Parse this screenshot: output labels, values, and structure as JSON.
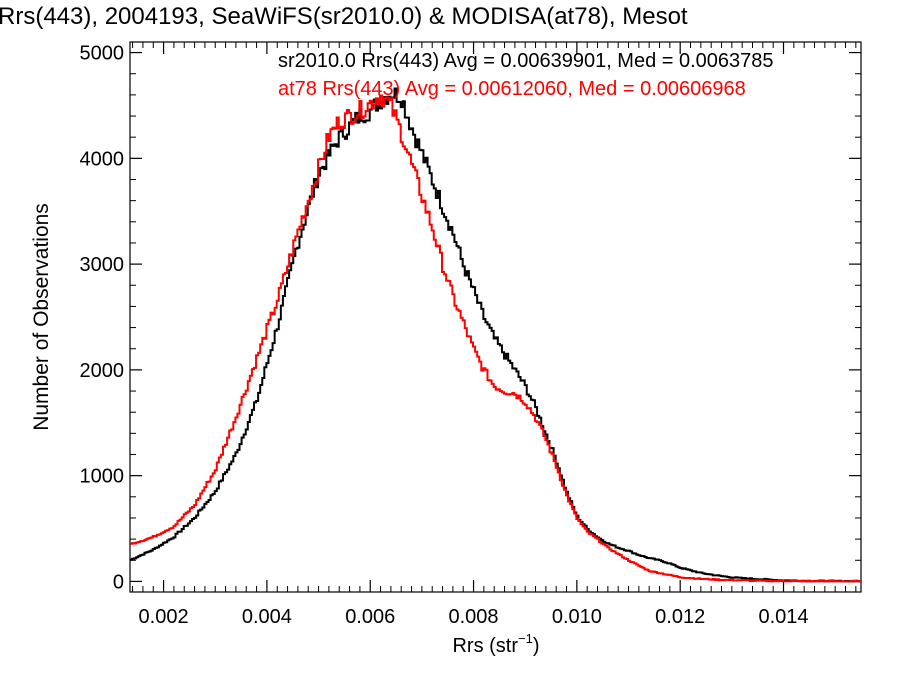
{
  "chart_data": {
    "type": "line",
    "title": "Rrs(443), 2004193, SeaWiFS(sr2010.0) & MODISA(at78), Mesot",
    "xlabel": "Rrs (str",
    "xlabel_sup": "−1",
    "xlabel_close": ")",
    "ylabel": "Number of Observations",
    "xlim": [
      0.00135,
      0.0155
    ],
    "ylim": [
      -100,
      5100
    ],
    "xticks": [
      0.002,
      0.004,
      0.006,
      0.008,
      0.01,
      0.012,
      0.014
    ],
    "xtick_labels": [
      "0.002",
      "0.004",
      "0.006",
      "0.008",
      "0.010",
      "0.012",
      "0.014"
    ],
    "yticks": [
      0,
      1000,
      2000,
      3000,
      4000,
      5000
    ],
    "ytick_labels": [
      "0",
      "1000",
      "2000",
      "3000",
      "4000",
      "5000"
    ],
    "annotations": [
      {
        "text": "sr2010.0 Rrs(443) Avg = 0.00639901, Med = 0.0063785",
        "color": "#000000"
      },
      {
        "text": "at78 Rrs(443) Avg = 0.00612060, Med = 0.00606968",
        "color": "#ff0000"
      }
    ],
    "series": [
      {
        "color": "#000000",
        "x": [
          0.00135,
          0.0018,
          0.0022,
          0.0026,
          0.003,
          0.0034,
          0.0038,
          0.0042,
          0.0046,
          0.005,
          0.0054,
          0.0058,
          0.006,
          0.0062,
          0.0064,
          0.0066,
          0.0068,
          0.007,
          0.0072,
          0.0074,
          0.0076,
          0.0078,
          0.008,
          0.0082,
          0.0084,
          0.0086,
          0.0088,
          0.009,
          0.0092,
          0.0094,
          0.0096,
          0.0098,
          0.01,
          0.0102,
          0.0104,
          0.0106,
          0.0108,
          0.011,
          0.0112,
          0.0114,
          0.0116,
          0.0118,
          0.012,
          0.0124,
          0.0128,
          0.0132,
          0.0136,
          0.014,
          0.0145,
          0.015,
          0.0155
        ],
        "y": [
          200,
          300,
          420,
          600,
          850,
          1200,
          1700,
          2400,
          3200,
          3850,
          4200,
          4400,
          4450,
          4550,
          4620,
          4590,
          4300,
          4050,
          3800,
          3550,
          3300,
          3000,
          2750,
          2500,
          2300,
          2150,
          2000,
          1850,
          1650,
          1400,
          1150,
          850,
          620,
          500,
          420,
          360,
          320,
          290,
          250,
          220,
          200,
          170,
          130,
          80,
          50,
          30,
          20,
          10,
          5,
          3,
          2
        ]
      },
      {
        "color": "#ff0000",
        "x": [
          0.00135,
          0.0018,
          0.0022,
          0.0026,
          0.003,
          0.0034,
          0.0038,
          0.0042,
          0.0046,
          0.005,
          0.0052,
          0.0054,
          0.0056,
          0.0058,
          0.006,
          0.0062,
          0.0064,
          0.0066,
          0.0068,
          0.007,
          0.0072,
          0.0074,
          0.0076,
          0.0078,
          0.008,
          0.0082,
          0.0084,
          0.0086,
          0.0088,
          0.009,
          0.0092,
          0.0094,
          0.0096,
          0.0098,
          0.01,
          0.0102,
          0.0104,
          0.0106,
          0.0108,
          0.011,
          0.0112,
          0.0114,
          0.0116,
          0.0118,
          0.012,
          0.0124,
          0.0128,
          0.0132,
          0.0136,
          0.014,
          0.0145,
          0.015,
          0.0155
        ],
        "y": [
          350,
          420,
          520,
          720,
          1050,
          1550,
          2100,
          2650,
          3300,
          3900,
          4200,
          4350,
          4400,
          4450,
          4520,
          4600,
          4500,
          4250,
          3950,
          3650,
          3350,
          3000,
          2700,
          2450,
          2200,
          2000,
          1850,
          1800,
          1780,
          1700,
          1550,
          1350,
          1100,
          820,
          600,
          470,
          400,
          320,
          260,
          200,
          150,
          100,
          80,
          60,
          40,
          25,
          15,
          10,
          5,
          3,
          2,
          1,
          0
        ]
      }
    ]
  }
}
